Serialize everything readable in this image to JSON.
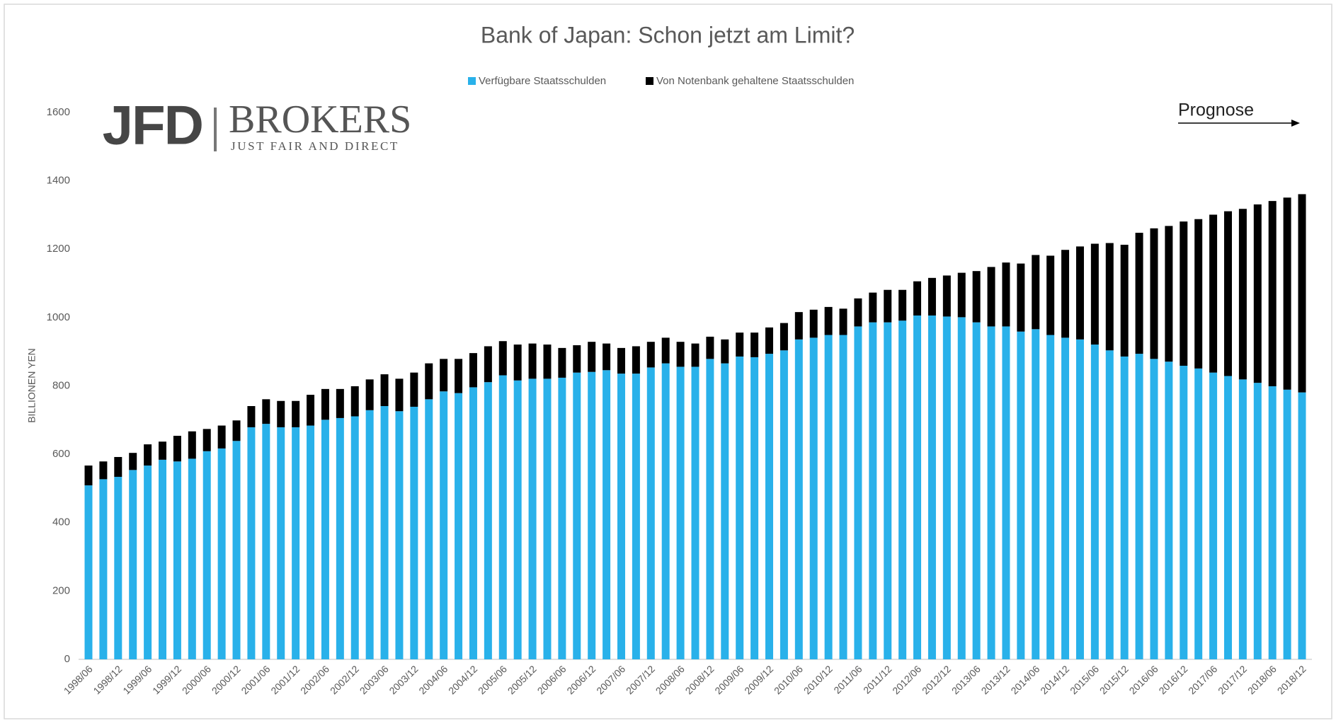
{
  "logo": {
    "name": "JFD",
    "brand": "BROKERS",
    "tagline": "JUST FAIR AND DIRECT"
  },
  "chart_data": {
    "type": "stacked_bar",
    "title": "Bank of Japan: Schon jetzt am Limit?",
    "y_label": "BILLIONEN YEN",
    "annotations": [
      "Prognose"
    ],
    "categories": [
      "1998/06",
      null,
      "1998/12",
      null,
      "1999/06",
      null,
      "1999/12",
      null,
      "2000/06",
      null,
      "2000/12",
      null,
      "2001/06",
      null,
      "2001/12",
      null,
      "2002/06",
      null,
      "2002/12",
      null,
      "2003/06",
      null,
      "2003/12",
      null,
      "2004/06",
      null,
      "2004/12",
      null,
      "2005/06",
      null,
      "2005/12",
      null,
      "2006/06",
      null,
      "2006/12",
      null,
      "2007/06",
      null,
      "2007/12",
      null,
      "2008/06",
      null,
      "2008/12",
      null,
      "2009/06",
      null,
      "2009/12",
      null,
      "2010/06",
      null,
      "2010/12",
      null,
      "2011/06",
      null,
      "2011/12",
      null,
      "2012/06",
      null,
      "2012/12",
      null,
      "2013/06",
      null,
      "2013/12",
      null,
      "2014/06",
      null,
      "2014/12",
      null,
      "2015/06",
      null,
      "2015/12",
      null,
      "2016/06",
      null,
      "2016/12",
      null,
      "2017/06",
      null,
      "2017/12",
      null,
      "2018/06",
      null,
      "2018/12"
    ],
    "series": [
      {
        "name": "Verfügbare Staatsschulden",
        "color": "#29b1ea",
        "values": [
          509,
          527,
          534,
          554,
          567,
          584,
          579,
          587,
          609,
          617,
          639,
          679,
          689,
          679,
          679,
          684,
          701,
          706,
          711,
          729,
          741,
          726,
          739,
          761,
          784,
          779,
          796,
          811,
          831,
          816,
          821,
          821,
          824,
          839,
          841,
          846,
          836,
          836,
          854,
          866,
          856,
          856,
          879,
          866,
          886,
          884,
          894,
          904,
          936,
          941,
          949,
          949,
          974,
          986,
          986,
          991,
          1006,
          1006,
          1003,
          1001,
          986,
          974,
          974,
          959,
          966,
          949,
          941,
          936,
          921,
          904,
          886,
          894,
          879,
          871,
          859,
          851,
          839,
          829,
          819,
          809,
          799,
          789,
          781
        ]
      },
      {
        "name": "Von Notenbank gehaltene Staatsschulden",
        "color": "#000000",
        "values": [
          58,
          52,
          58,
          50,
          62,
          53,
          75,
          80,
          65,
          67,
          60,
          62,
          72,
          77,
          77,
          90,
          90,
          85,
          88,
          90,
          93,
          95,
          100,
          105,
          95,
          100,
          100,
          105,
          100,
          105,
          103,
          100,
          87,
          80,
          88,
          78,
          75,
          80,
          75,
          75,
          73,
          68,
          65,
          70,
          70,
          72,
          77,
          80,
          80,
          82,
          82,
          77,
          82,
          87,
          95,
          90,
          100,
          110,
          120,
          130,
          150,
          174,
          187,
          199,
          217,
          232,
          257,
          272,
          295,
          314,
          327,
          354,
          382,
          397,
          422,
          437,
          462,
          482,
          499,
          522,
          542,
          562,
          580
        ]
      }
    ],
    "ylim": [
      0,
      1600
    ],
    "yticks": [
      0,
      200,
      400,
      600,
      800,
      1000,
      1200,
      1400,
      1600
    ],
    "grid": false
  }
}
